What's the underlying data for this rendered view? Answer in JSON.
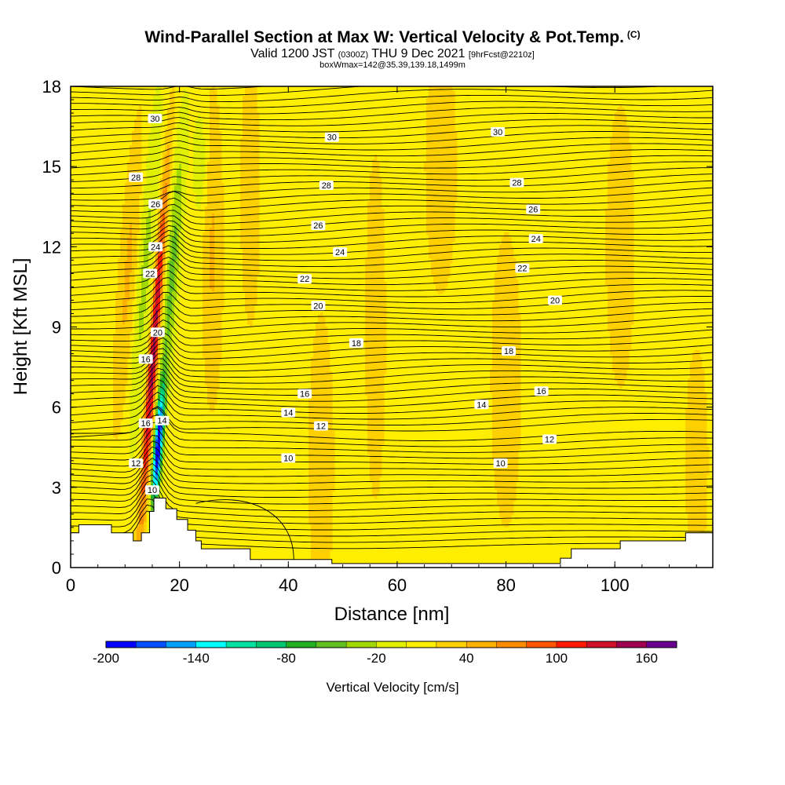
{
  "header": {
    "title": "Wind-Parallel Section at Max W: Vertical Velocity & Pot.Temp.",
    "copyright": "(C)",
    "valid_prefix": "Valid 1200 JST",
    "valid_utc": "(0300Z)",
    "valid_date": "THU 9 Dec 2021",
    "forecast": "[9hrFcst@2210z]",
    "box_info": "boxWmax=142@35.39,139.18,1499m"
  },
  "chart_data": {
    "type": "heatmap",
    "xlabel": "Distance [nm]",
    "ylabel": "Height [Kft MSL]",
    "xlim": [
      0,
      118
    ],
    "ylim": [
      0,
      18
    ],
    "x_ticks": [
      "0",
      "20",
      "40",
      "60",
      "80",
      "100"
    ],
    "y_ticks": [
      "0",
      "3",
      "6",
      "9",
      "12",
      "15",
      "18"
    ],
    "colorbar": {
      "title": "Vertical Velocity [cm/s]",
      "tick_labels": [
        "-200",
        "-140",
        "-80",
        "-20",
        "40",
        "100",
        "160"
      ],
      "levels": [
        -200,
        -180,
        -160,
        -140,
        -120,
        -100,
        -80,
        -60,
        -40,
        -20,
        0,
        20,
        40,
        60,
        80,
        100,
        120,
        140,
        160
      ],
      "colors": [
        "#0000ff",
        "#0050ff",
        "#00a0ff",
        "#00ffff",
        "#00e0a0",
        "#00c870",
        "#20b020",
        "#60c020",
        "#a0d800",
        "#e0f000",
        "#ffee00",
        "#ffd000",
        "#ffb000",
        "#ff8c00",
        "#ff5500",
        "#ff1a00",
        "#d0102a",
        "#a00050",
        "#6a0090"
      ]
    },
    "background_color": "#ffee00",
    "terrain": [
      [
        0,
        1.3
      ],
      [
        1.5,
        1.6
      ],
      [
        7.5,
        1.3
      ],
      [
        11.5,
        1.0
      ],
      [
        13,
        1.3
      ],
      [
        14.5,
        2.1
      ],
      [
        15.3,
        2.6
      ],
      [
        17.5,
        2.2
      ],
      [
        19.5,
        1.8
      ],
      [
        21.5,
        1.4
      ],
      [
        23,
        1.0
      ],
      [
        24,
        0.7
      ],
      [
        33,
        0.3
      ],
      [
        40,
        0.3
      ],
      [
        48,
        0.15
      ],
      [
        66,
        0.15
      ],
      [
        90,
        0.35
      ],
      [
        92,
        0.7
      ],
      [
        101,
        1.0
      ],
      [
        113,
        1.3
      ],
      [
        118,
        1.3
      ]
    ],
    "contour_labels": [
      {
        "text": "30",
        "x": 15.5,
        "y": 16.8
      },
      {
        "text": "30",
        "x": 48,
        "y": 16.1
      },
      {
        "text": "30",
        "x": 78.5,
        "y": 16.3
      },
      {
        "text": "28",
        "x": 12,
        "y": 14.6
      },
      {
        "text": "28",
        "x": 47,
        "y": 14.3
      },
      {
        "text": "28",
        "x": 82,
        "y": 14.4
      },
      {
        "text": "26",
        "x": 15.6,
        "y": 13.6
      },
      {
        "text": "26",
        "x": 45.5,
        "y": 12.8
      },
      {
        "text": "26",
        "x": 85,
        "y": 13.4
      },
      {
        "text": "24",
        "x": 15.6,
        "y": 12.0
      },
      {
        "text": "24",
        "x": 49.5,
        "y": 11.8
      },
      {
        "text": "24",
        "x": 85.5,
        "y": 12.3
      },
      {
        "text": "22",
        "x": 14.6,
        "y": 11.0
      },
      {
        "text": "22",
        "x": 43,
        "y": 10.8
      },
      {
        "text": "22",
        "x": 83,
        "y": 11.2
      },
      {
        "text": "20",
        "x": 16,
        "y": 8.8
      },
      {
        "text": "20",
        "x": 45.5,
        "y": 9.8
      },
      {
        "text": "20",
        "x": 89,
        "y": 10.0
      },
      {
        "text": "18",
        "x": 52.5,
        "y": 8.4
      },
      {
        "text": "18",
        "x": 80.5,
        "y": 8.1
      },
      {
        "text": "16",
        "x": 13.8,
        "y": 7.8
      },
      {
        "text": "16",
        "x": 43,
        "y": 6.5
      },
      {
        "text": "16",
        "x": 86.5,
        "y": 6.6
      },
      {
        "text": "16",
        "x": 13.8,
        "y": 5.4
      },
      {
        "text": "14",
        "x": 16.8,
        "y": 5.5
      },
      {
        "text": "14",
        "x": 40,
        "y": 5.8
      },
      {
        "text": "14",
        "x": 75.5,
        "y": 6.1
      },
      {
        "text": "12",
        "x": 46,
        "y": 5.3
      },
      {
        "text": "12",
        "x": 88,
        "y": 4.8
      },
      {
        "text": "12",
        "x": 12,
        "y": 3.9
      },
      {
        "text": "10",
        "x": 40,
        "y": 4.1
      },
      {
        "text": "10",
        "x": 79,
        "y": 3.9
      },
      {
        "text": "10",
        "x": 15,
        "y": 2.9
      }
    ]
  }
}
